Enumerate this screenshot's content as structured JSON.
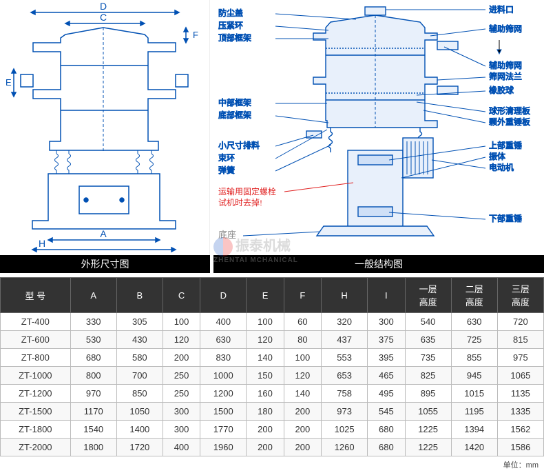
{
  "leftLabels": {
    "D": "D",
    "C": "C",
    "F": "F",
    "E": "E",
    "A": "A",
    "H": "H"
  },
  "rightLabels": {
    "fangchen": "防尘盖",
    "yajin": "压紧环",
    "dingbu": "顶部框架",
    "zhongbu": "中部框架",
    "dibu": "底部框架",
    "xiaochi": "小尺寸排料",
    "suhuan": "束环",
    "tanhuang": "弹簧",
    "hongzi1": "运输用固定螺栓",
    "hongzi2": "试机时去掉!",
    "dizuo": "底座",
    "jinliao": "进料口",
    "fuzhushai1": "辅助筛网",
    "fuzhushai2": "辅助筛网",
    "shaiwangfalan": "筛网法兰",
    "xiangjiao": "橡胶球",
    "qiuxing": "球形清理板",
    "keli": "颗外重锤板",
    "shangbu": "上部重锤",
    "zhenti": "振体",
    "diandong": "电动机",
    "xiabu": "下部重锤"
  },
  "titles": {
    "left": "外形尺寸图",
    "right": "一般结构图"
  },
  "table": {
    "headers": [
      "型 号",
      "A",
      "B",
      "C",
      "D",
      "E",
      "F",
      "H",
      "I",
      "一层\n高度",
      "二层\n高度",
      "三层\n高度"
    ],
    "rows": [
      [
        "ZT-400",
        "330",
        "305",
        "100",
        "400",
        "100",
        "60",
        "320",
        "300",
        "540",
        "630",
        "720"
      ],
      [
        "ZT-600",
        "530",
        "430",
        "120",
        "630",
        "120",
        "80",
        "437",
        "375",
        "635",
        "725",
        "815"
      ],
      [
        "ZT-800",
        "680",
        "580",
        "200",
        "830",
        "140",
        "100",
        "553",
        "395",
        "735",
        "855",
        "975"
      ],
      [
        "ZT-1000",
        "800",
        "700",
        "250",
        "1000",
        "150",
        "120",
        "653",
        "465",
        "825",
        "945",
        "1065"
      ],
      [
        "ZT-1200",
        "970",
        "850",
        "250",
        "1200",
        "160",
        "140",
        "758",
        "495",
        "895",
        "1015",
        "1135"
      ],
      [
        "ZT-1500",
        "1170",
        "1050",
        "300",
        "1500",
        "180",
        "200",
        "973",
        "545",
        "1055",
        "1195",
        "1335"
      ],
      [
        "ZT-1800",
        "1540",
        "1400",
        "300",
        "1770",
        "200",
        "200",
        "1025",
        "680",
        "1225",
        "1394",
        "1562"
      ],
      [
        "ZT-2000",
        "1800",
        "1720",
        "400",
        "1960",
        "200",
        "200",
        "1260",
        "680",
        "1225",
        "1420",
        "1586"
      ]
    ]
  },
  "unit": "单位：mm",
  "watermark": {
    "main": "振泰机械",
    "sub": "ZHENTAI MCHANICAL"
  },
  "colors": {
    "blue": "#0050b3",
    "red": "#e02020",
    "black": "#000",
    "gray": "#888"
  }
}
